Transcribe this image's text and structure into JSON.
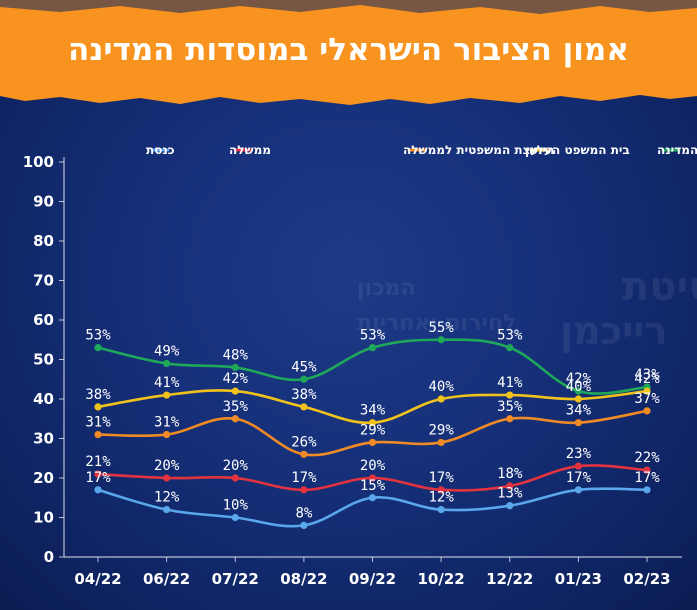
{
  "title": "אמון הציבור הישראלי במוסדות המדינה",
  "watermark": {
    "line1": "אוניברסיטת",
    "line2": "רייכמן",
    "line3": "המכון",
    "line4": "לחירות ואחריות"
  },
  "colors": {
    "background": "#16307a",
    "banner": "#f7931e",
    "axis": "#ffffff"
  },
  "chart_data": {
    "type": "line",
    "categories": [
      "04/22",
      "06/22",
      "07/22",
      "08/22",
      "09/22",
      "10/22",
      "12/22",
      "01/23",
      "02/23"
    ],
    "ylim": [
      0,
      100
    ],
    "yticks": [
      0,
      10,
      20,
      30,
      40,
      50,
      60,
      70,
      80,
      90,
      100
    ],
    "legend_position": "top",
    "grid": false,
    "value_suffix": "%",
    "series": [
      {
        "name": "נשיא המדינה",
        "color": "#1fa85a",
        "values": [
          53,
          49,
          48,
          45,
          53,
          55,
          53,
          42,
          43
        ]
      },
      {
        "name": "בית המשפט העליון",
        "color": "#f2c21c",
        "values": [
          38,
          41,
          42,
          38,
          34,
          40,
          41,
          40,
          42
        ]
      },
      {
        "name": "היועצת המשפטית לממשלה",
        "color": "#f08a24",
        "values": [
          31,
          31,
          35,
          26,
          29,
          29,
          35,
          34,
          37
        ]
      },
      {
        "name": "ממשלה",
        "color": "#e3333f",
        "values": [
          21,
          20,
          20,
          17,
          20,
          17,
          18,
          23,
          22
        ]
      },
      {
        "name": "כנסת",
        "color": "#5aa7ec",
        "values": [
          17,
          12,
          10,
          8,
          15,
          12,
          13,
          17,
          17
        ]
      }
    ]
  }
}
